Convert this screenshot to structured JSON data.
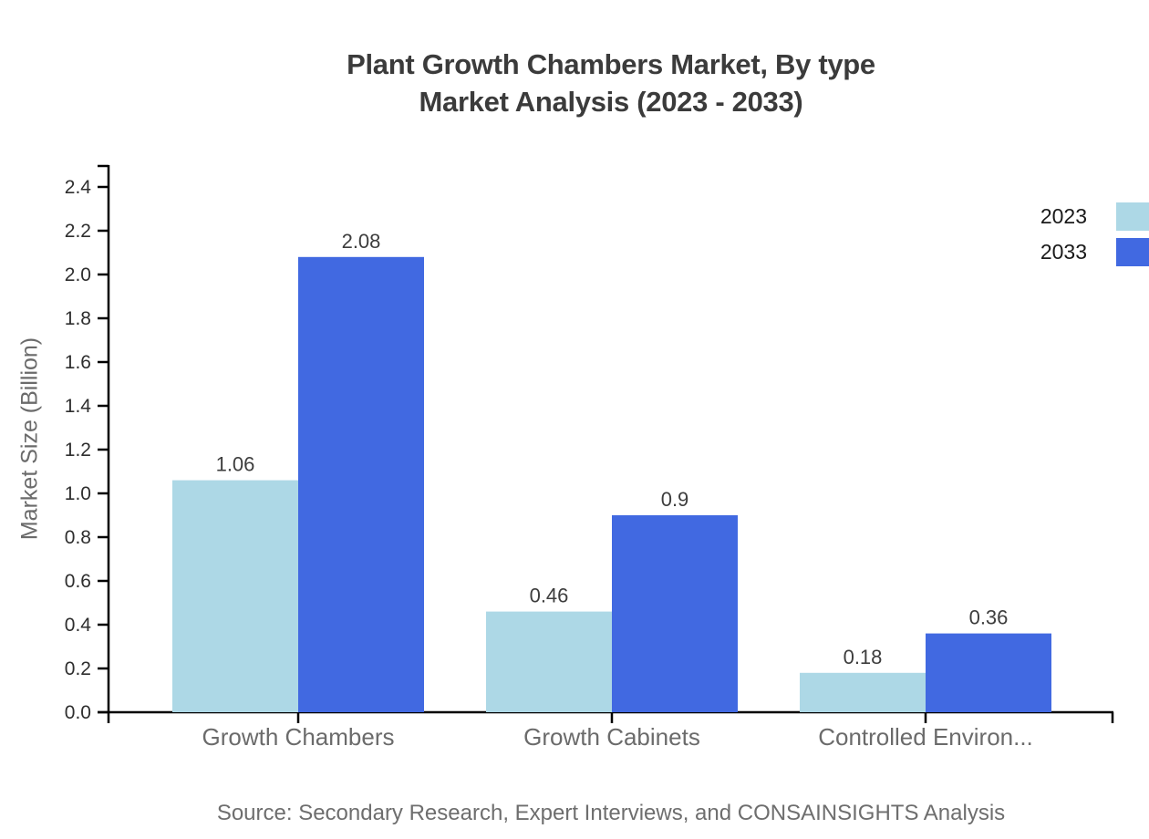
{
  "title": {
    "line1": "Plant Growth Chambers Market, By type",
    "line2": "Market Analysis (2023 - 2033)"
  },
  "source_note": "Source: Secondary Research, Expert Interviews, and CONSAINSIGHTS Analysis",
  "chart_data": {
    "type": "bar",
    "title": "Plant Growth Chambers Market, By type Market Analysis (2023 - 2033)",
    "categories": [
      "Growth Chambers",
      "Growth Cabinets",
      "Controlled Environ..."
    ],
    "series": [
      {
        "name": "2023",
        "color": "#ADD8E6",
        "values": [
          1.06,
          0.46,
          0.18
        ]
      },
      {
        "name": "2033",
        "color": "#4169E1",
        "values": [
          2.08,
          0.9,
          0.36
        ]
      }
    ],
    "xlabel": "",
    "ylabel": "Market Size (Billion)",
    "ylim": [
      0,
      2.5
    ],
    "yticks": [
      0,
      0.2,
      0.4,
      0.6,
      0.8,
      1,
      1.2,
      1.4,
      1.6,
      1.8,
      2,
      2.2,
      2.4
    ],
    "ytick_decimals": 1,
    "grid": false,
    "legend_position": "top-right",
    "value_labels": true,
    "axis_color": "#000000",
    "background_color": "#ffffff"
  }
}
